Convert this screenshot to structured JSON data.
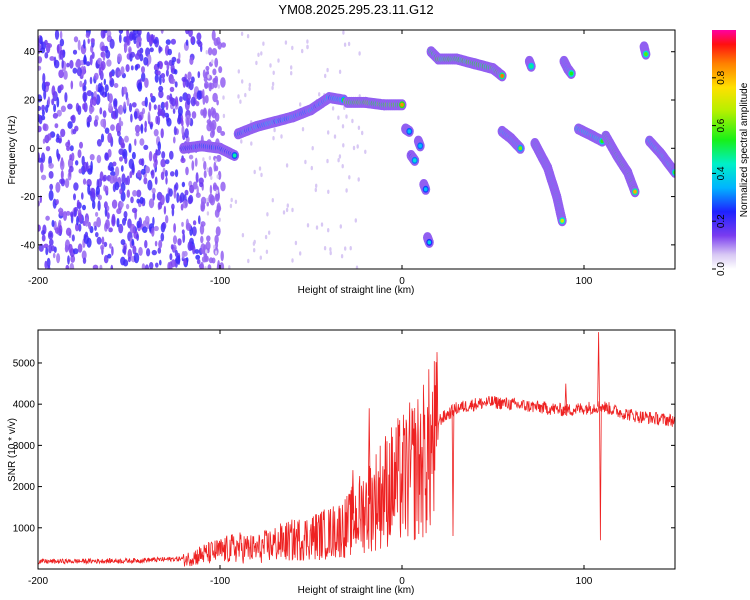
{
  "title": "YM08.2025.295.23.11.G12",
  "colors": {
    "snr_line": "#ee2222",
    "axis": "#000000"
  },
  "colorbar": {
    "label": "Normalized spectral amplitude",
    "range": [
      0,
      1
    ],
    "ticks": [
      "0.0",
      "0.2",
      "0.4",
      "0.6",
      "0.8"
    ],
    "tick_values": [
      0.0,
      0.2,
      0.4,
      0.6,
      0.8
    ]
  },
  "chart_data": [
    {
      "type": "heatmap",
      "name": "spectrogram",
      "xlabel": "Height of straight line (km)",
      "ylabel": "Frequency (Hz)",
      "xlim": [
        -200,
        150
      ],
      "ylim": [
        -50,
        49
      ],
      "xticks": [
        "-200",
        "-100",
        "0",
        "100"
      ],
      "xtick_values": [
        -200,
        -100,
        0,
        100
      ],
      "yticks": [
        "-40",
        "-20",
        "0",
        "20",
        "40"
      ],
      "ytick_values": [
        -40,
        -20,
        0,
        20,
        40
      ],
      "background_noise_x_range": [
        -200,
        -110
      ],
      "tracks": [
        {
          "x": [
            -120,
            -110,
            -100,
            -92
          ],
          "y": [
            0,
            1,
            0,
            -3
          ],
          "amp": 0.4
        },
        {
          "x": [
            -90,
            -80,
            -70,
            -60,
            -50,
            -40,
            -32
          ],
          "y": [
            6,
            9,
            11,
            13,
            16,
            21,
            20
          ],
          "amp": 0.5
        },
        {
          "x": [
            -30,
            -20,
            -10,
            0
          ],
          "y": [
            19,
            19,
            18,
            18
          ],
          "amp": 0.9
        },
        {
          "x": [
            2,
            4
          ],
          "y": [
            8,
            7
          ],
          "amp": 0.4
        },
        {
          "x": [
            5,
            7
          ],
          "y": [
            -3,
            -5
          ],
          "amp": 0.4
        },
        {
          "x": [
            9,
            10
          ],
          "y": [
            3,
            1
          ],
          "amp": 0.4
        },
        {
          "x": [
            12,
            13
          ],
          "y": [
            -15,
            -17
          ],
          "amp": 0.4
        },
        {
          "x": [
            14,
            15
          ],
          "y": [
            -37,
            -39
          ],
          "amp": 0.4
        },
        {
          "x": [
            16,
            20,
            30,
            40,
            50,
            55
          ],
          "y": [
            40,
            37,
            37,
            35,
            33,
            30
          ],
          "amp": 0.85
        },
        {
          "x": [
            55,
            60,
            65
          ],
          "y": [
            7,
            4,
            0
          ],
          "amp": 0.6
        },
        {
          "x": [
            70,
            71
          ],
          "y": [
            36,
            34
          ],
          "amp": 0.5
        },
        {
          "x": [
            73,
            80,
            85,
            88
          ],
          "y": [
            2,
            -8,
            -20,
            -30
          ],
          "amp": 0.7
        },
        {
          "x": [
            89,
            91,
            93
          ],
          "y": [
            36,
            33,
            31
          ],
          "amp": 0.6
        },
        {
          "x": [
            97,
            105,
            110
          ],
          "y": [
            8,
            5,
            3
          ],
          "amp": 0.6
        },
        {
          "x": [
            112,
            118,
            124,
            128
          ],
          "y": [
            5,
            -3,
            -10,
            -18
          ],
          "amp": 0.8
        },
        {
          "x": [
            133,
            134
          ],
          "y": [
            42,
            39
          ],
          "amp": 0.6
        },
        {
          "x": [
            136,
            142,
            150
          ],
          "y": [
            3,
            -2,
            -10
          ],
          "amp": 0.6
        }
      ]
    },
    {
      "type": "line",
      "name": "snr",
      "xlabel": "Height of straight line (km)",
      "ylabel": "SNR (10 * v/v)",
      "xlim": [
        -200,
        150
      ],
      "ylim": [
        0,
        5800
      ],
      "xticks": [
        "-200",
        "-100",
        "0",
        "100"
      ],
      "xtick_values": [
        -200,
        -100,
        0,
        100
      ],
      "yticks": [
        "1000",
        "2000",
        "3000",
        "4000",
        "5000"
      ],
      "ytick_values": [
        1000,
        2000,
        3000,
        4000,
        5000
      ],
      "envelope_x": [
        -200,
        -150,
        -120,
        -110,
        -100,
        -90,
        -80,
        -70,
        -60,
        -50,
        -40,
        -30,
        -20,
        -15,
        -10,
        0,
        10,
        20,
        30,
        40,
        50,
        60,
        70,
        80,
        90,
        100,
        110,
        120,
        130,
        140,
        150
      ],
      "envelope_y": [
        180,
        200,
        250,
        400,
        500,
        600,
        550,
        700,
        800,
        900,
        1000,
        1200,
        1700,
        1900,
        2200,
        2500,
        2900,
        3600,
        3900,
        4000,
        4050,
        4000,
        3950,
        3900,
        3850,
        3900,
        3950,
        3800,
        3700,
        3650,
        3600
      ],
      "spikes": [
        {
          "x": -18,
          "y": 3900
        },
        {
          "x": -27,
          "y": 2400
        },
        {
          "x": 28,
          "y": 800
        },
        {
          "x": 90,
          "y": 4500
        },
        {
          "x": 108,
          "y": 5750
        },
        {
          "x": 109,
          "y": 700
        }
      ]
    }
  ]
}
